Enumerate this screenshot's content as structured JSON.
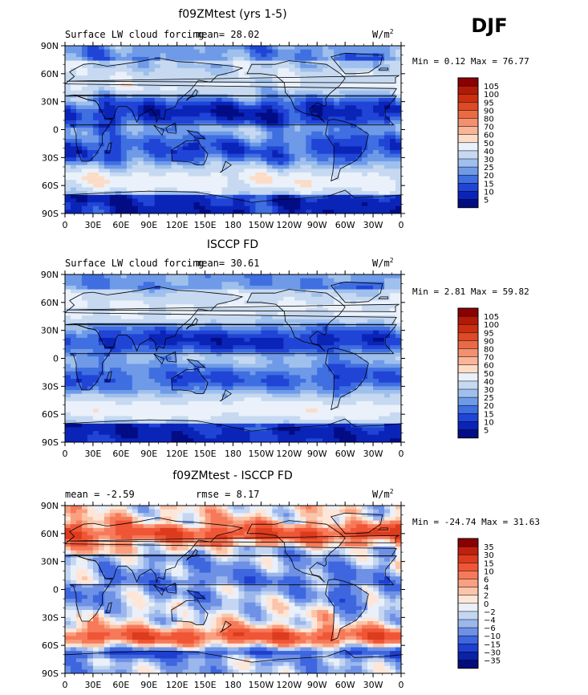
{
  "season": "DJF",
  "chart_data": [
    {
      "type": "heatmap",
      "title": "f09ZMtest (yrs 1-5)",
      "subtitle": "Surface LW cloud forcing",
      "mean_text": "mean=  28.02",
      "units": "W/m",
      "units_exp": "2",
      "minmax_text": "Min =   0.12 Max =  76.77",
      "min": 0.12,
      "max": 76.77,
      "mean": 28.02,
      "x_ticks": [
        "0",
        "30E",
        "60E",
        "90E",
        "120E",
        "150E",
        "180",
        "150W",
        "120W",
        "90W",
        "60W",
        "30W",
        "0"
      ],
      "y_ticks": [
        "90N",
        "60N",
        "30N",
        "0",
        "30S",
        "60S",
        "90S"
      ],
      "colorbar_levels": [
        "105",
        "100",
        "95",
        "90",
        "80",
        "70",
        "60",
        "50",
        "40",
        "30",
        "25",
        "20",
        "15",
        "10",
        "5"
      ],
      "colorbar_colors": [
        "#8b0000",
        "#b21a08",
        "#cc2e10",
        "#de4a26",
        "#ea6a46",
        "#f39070",
        "#f8b598",
        "#fcdcc6",
        "#eaf1fa",
        "#c6d9f1",
        "#9fc0ec",
        "#6f9ae8",
        "#3f6fe0",
        "#2045d6",
        "#0b24b8",
        "#020d85"
      ],
      "field": "abs_present"
    },
    {
      "type": "heatmap",
      "title": "ISCCP FD",
      "subtitle": "Surface LW cloud forcing",
      "mean_text": "mean=  30.61",
      "units": "W/m",
      "units_exp": "2",
      "minmax_text": "Min =   2.81 Max =  59.82",
      "min": 2.81,
      "max": 59.82,
      "mean": 30.61,
      "x_ticks": [
        "0",
        "30E",
        "60E",
        "90E",
        "120E",
        "150E",
        "180",
        "150W",
        "120W",
        "90W",
        "60W",
        "30W",
        "0"
      ],
      "y_ticks": [
        "90N",
        "60N",
        "30N",
        "0",
        "30S",
        "60S",
        "90S"
      ],
      "colorbar_levels": [
        "105",
        "100",
        "95",
        "90",
        "80",
        "70",
        "60",
        "50",
        "40",
        "30",
        "25",
        "20",
        "15",
        "10",
        "5"
      ],
      "colorbar_colors": [
        "#8b0000",
        "#b21a08",
        "#cc2e10",
        "#de4a26",
        "#ea6a46",
        "#f39070",
        "#f8b598",
        "#fcdcc6",
        "#eaf1fa",
        "#c6d9f1",
        "#9fc0ec",
        "#6f9ae8",
        "#3f6fe0",
        "#2045d6",
        "#0b24b8",
        "#020d85"
      ],
      "field": "abs_obs"
    },
    {
      "type": "heatmap",
      "title": "f09ZMtest - ISCCP FD",
      "subtitle": "",
      "mean_text": "mean =  -2.59",
      "rmse_text": "rmse =   8.17",
      "units": "W/m",
      "units_exp": "2",
      "minmax_text": "Min = -24.74 Max =  31.63",
      "min": -24.74,
      "max": 31.63,
      "mean": -2.59,
      "rmse": 8.17,
      "x_ticks": [
        "0",
        "30E",
        "60E",
        "90E",
        "120E",
        "150E",
        "180",
        "150W",
        "120W",
        "90W",
        "60W",
        "30W",
        "0"
      ],
      "y_ticks": [
        "90N",
        "60N",
        "30N",
        "0",
        "30S",
        "60S",
        "90S"
      ],
      "colorbar_levels": [
        "35",
        "30",
        "15",
        "10",
        "6",
        "4",
        "2",
        "0",
        "−2",
        "−4",
        "−6",
        "−10",
        "−15",
        "−30",
        "−35"
      ],
      "colorbar_colors": [
        "#8b0000",
        "#c0200f",
        "#dd3b1e",
        "#f05636",
        "#f67a5a",
        "#f9a080",
        "#fbc5aa",
        "#fde6d8",
        "#e9f0fa",
        "#c5d6f2",
        "#9bb7ec",
        "#6e91e6",
        "#3e66df",
        "#1e3fcf",
        "#0b22a6",
        "#020c7a"
      ],
      "field": "diff"
    }
  ]
}
